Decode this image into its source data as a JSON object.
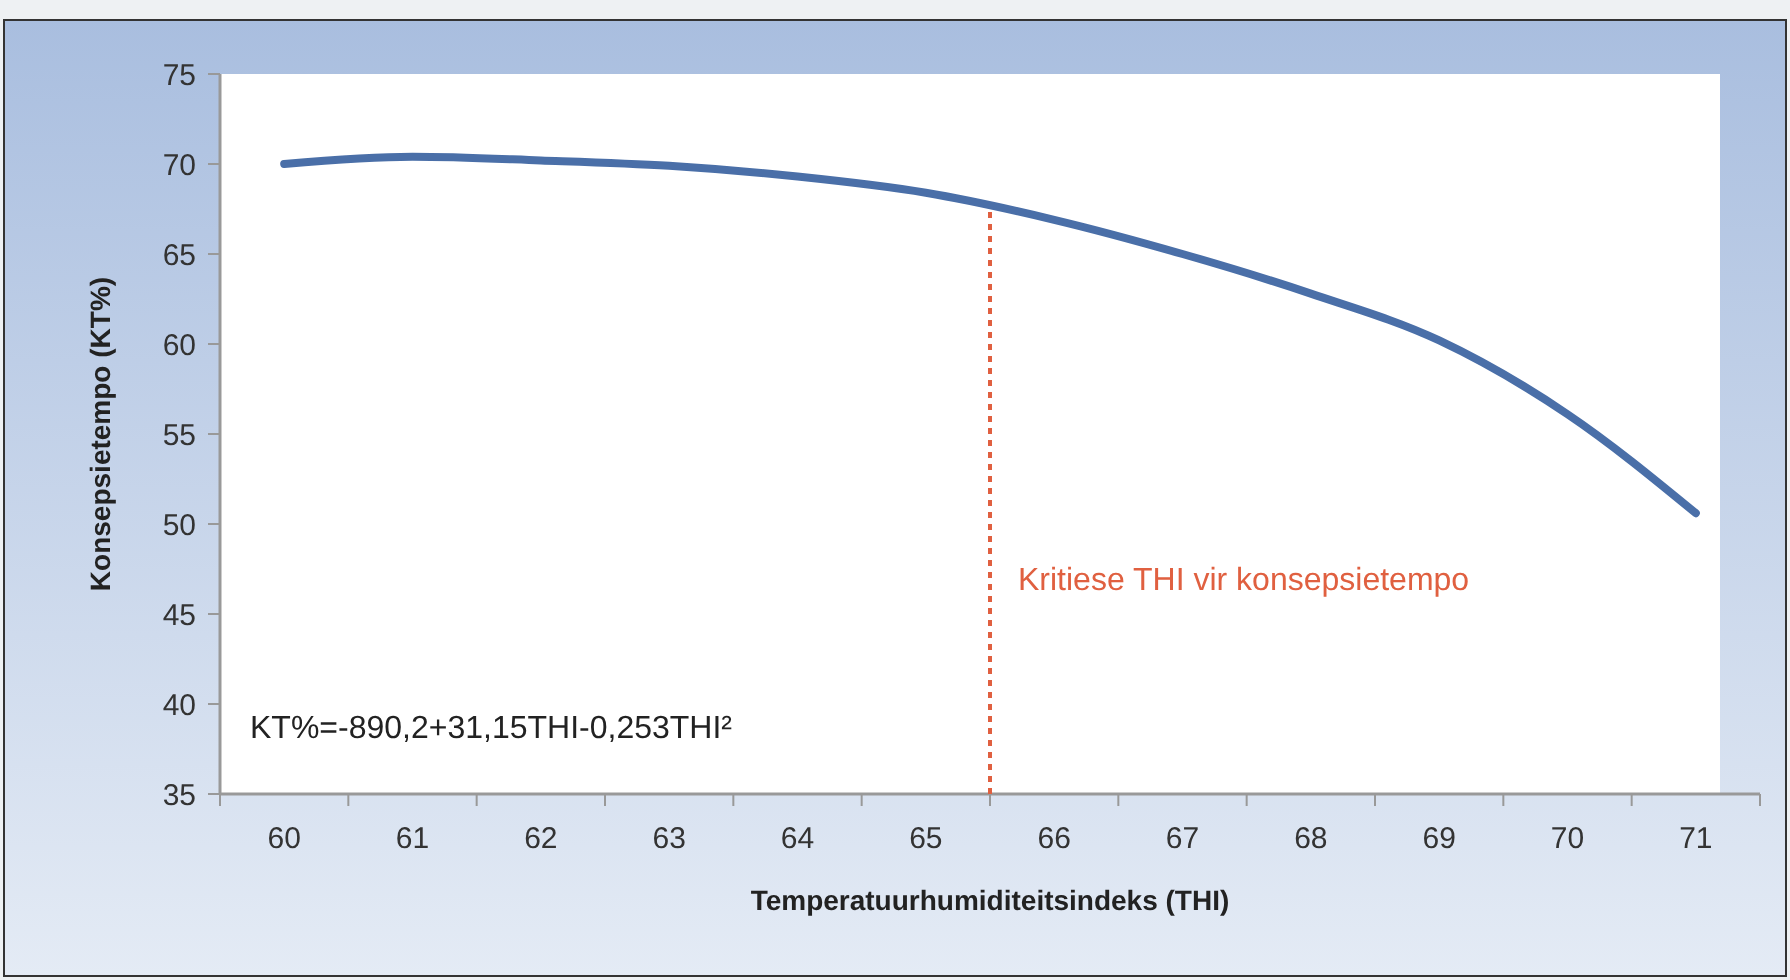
{
  "chart_data": {
    "type": "line",
    "xlabel": "Temperatuurhumiditeitsindeks (THI)",
    "ylabel": "Konsepsietempo (KT%)",
    "x": [
      60,
      61,
      62,
      63,
      64,
      65,
      66,
      67,
      68,
      69,
      70,
      71
    ],
    "series": [
      {
        "color": "#4a6fa8",
        "values": [
          70,
          70.4,
          70.2,
          69.9,
          69.3,
          68.4,
          66.9,
          65,
          62.8,
          60.2,
          56.1,
          50.6
        ]
      }
    ],
    "xlim": [
      59.5,
      71.5
    ],
    "xticks": [
      60,
      61,
      62,
      63,
      64,
      65,
      66,
      67,
      68,
      69,
      70,
      71,
      {
        "value": 59.5,
        "label": null
      },
      {
        "value": 60.5,
        "label": null
      },
      {
        "value": 61.5,
        "label": null
      },
      {
        "value": 62.5,
        "label": null
      },
      {
        "value": 63.5,
        "label": null
      },
      {
        "value": 64.5,
        "label": null
      },
      {
        "value": 65.5,
        "label": null
      },
      {
        "value": 66.5,
        "label": null
      },
      {
        "value": 67.5,
        "label": null
      },
      {
        "value": 68.5,
        "label": null
      },
      {
        "value": 69.5,
        "label": null
      },
      {
        "value": 70.5,
        "label": null
      },
      {
        "value": 71.5,
        "label": null
      }
    ],
    "ylim": [
      35,
      75
    ],
    "yticks": [
      35,
      40,
      45,
      50,
      55,
      60,
      65,
      70,
      75
    ],
    "ref_lines": [
      {
        "axis": "x",
        "value": 65.5,
        "label": "Kritiese THI vir konsepsietempo",
        "color": "#e06040",
        "line_style": "dotted"
      }
    ],
    "annotations": [
      "KT%=-890,2+31,15THI-0,253THI²"
    ],
    "grid": false,
    "marker": "none",
    "line_style": "solid"
  }
}
